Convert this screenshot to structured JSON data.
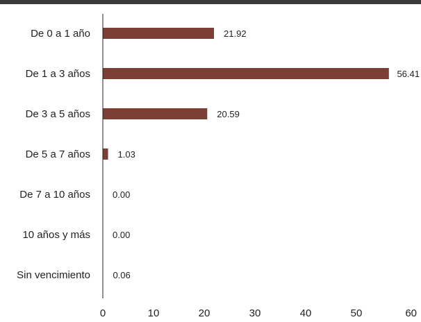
{
  "chart_data": {
    "type": "bar",
    "orientation": "horizontal",
    "categories": [
      "De 0 a 1 año",
      "De 1 a 3 años",
      "De 3 a 5 años",
      "De 5 a 7 años",
      "De 7 a 10 años",
      "10 años y más",
      "Sin vencimiento"
    ],
    "values": [
      21.92,
      56.41,
      20.59,
      1.03,
      0.0,
      0.0,
      0.06
    ],
    "value_labels": [
      "21.92",
      "56.41",
      "20.59",
      "1.03",
      "0.00",
      "0.00",
      "0.06"
    ],
    "xlim": [
      0,
      60
    ],
    "x_ticks": [
      0,
      10,
      20,
      30,
      40,
      50,
      60
    ],
    "grid": false,
    "bar_color": "#7b3f35"
  }
}
